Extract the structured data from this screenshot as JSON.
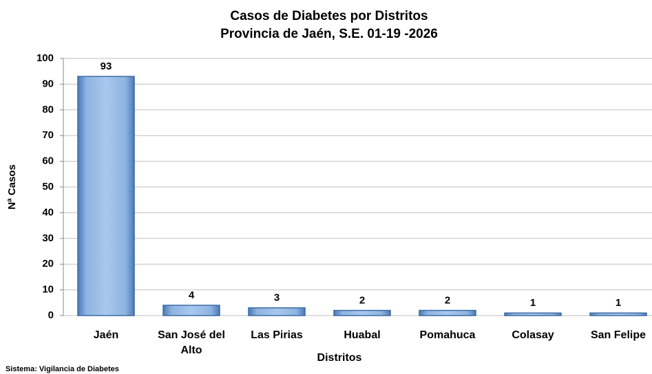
{
  "chart_data": {
    "type": "bar",
    "title": "Casos de Diabetes por Distritos",
    "subtitle": "Provincia de Jaén, S.E. 01-19 -2026",
    "x_label": "Distritos",
    "y_label": "Nª Casos",
    "source": "Sistema: Vigilancia de Diabetes",
    "categories": [
      "Jaén",
      "San José del Alto",
      "Las Pirias",
      "Huabal",
      "Pomahuca",
      "Colasay",
      "San Felipe"
    ],
    "values": [
      93,
      4,
      3,
      2,
      2,
      1,
      1
    ],
    "color": "#8db4e2",
    "ylim": [
      0,
      100
    ],
    "yticks": [
      0,
      10,
      20,
      30,
      40,
      50,
      60,
      70,
      80,
      90,
      100
    ],
    "grid": true
  }
}
